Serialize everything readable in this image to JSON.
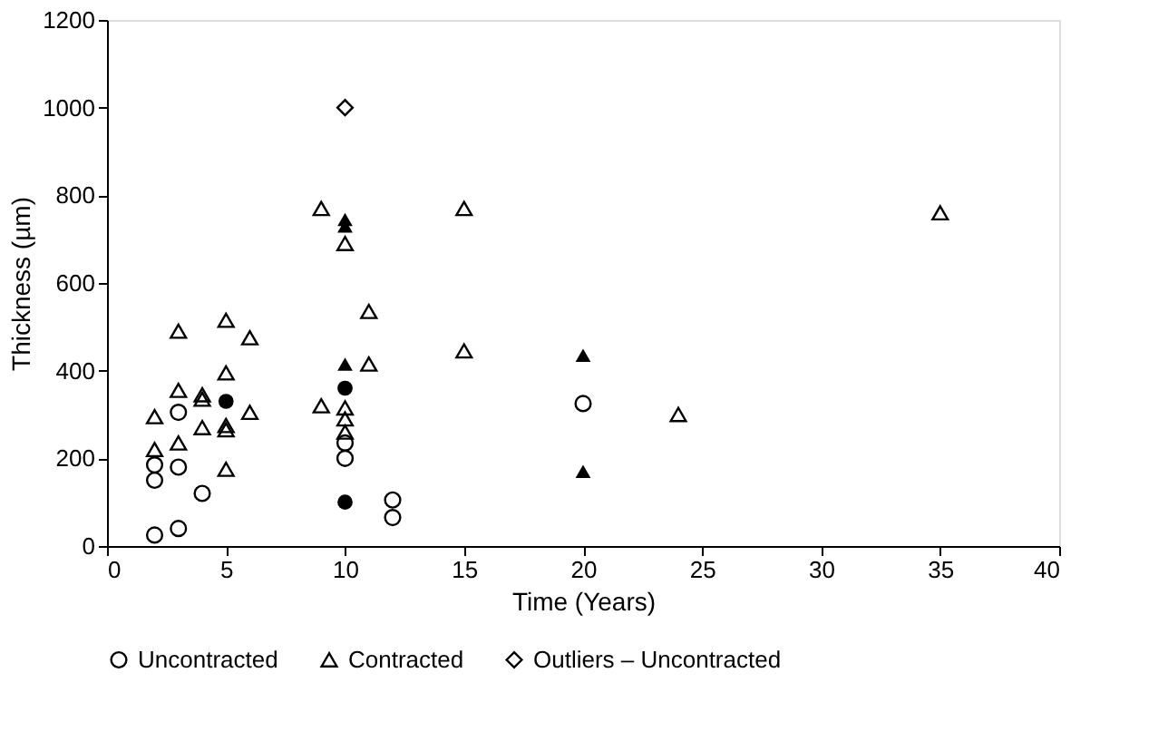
{
  "chart_data": {
    "type": "scatter",
    "xlabel": "Time (Years)",
    "ylabel": "Thickness (µm)",
    "xlim": [
      0,
      40
    ],
    "xticks": [
      0,
      5,
      10,
      15,
      20,
      25,
      30,
      35,
      40
    ],
    "ylim": [
      0,
      1200
    ],
    "yticks": [
      0,
      200,
      400,
      600,
      800,
      1000,
      1200
    ],
    "grid": false,
    "legend": "bottom",
    "series": [
      {
        "name": "Uncontracted",
        "color": "#000000",
        "marker": "circle",
        "x": [
          2,
          2,
          2,
          3,
          3,
          3,
          4,
          10,
          10,
          12,
          12,
          20
        ],
        "values": [
          25,
          150,
          185,
          40,
          180,
          305,
          120,
          200,
          235,
          105,
          65,
          325
        ]
      },
      {
        "name": "Contracted",
        "color": "#000000",
        "marker": "triangle",
        "x": [
          2,
          2,
          3,
          3,
          3,
          4,
          4,
          4,
          5,
          5,
          5,
          5,
          5,
          6,
          6,
          9,
          9,
          10,
          10,
          10,
          10,
          11,
          11,
          15,
          15,
          24,
          35
        ],
        "values": [
          220,
          295,
          235,
          355,
          490,
          270,
          335,
          345,
          175,
          265,
          275,
          395,
          515,
          305,
          475,
          320,
          770,
          260,
          290,
          315,
          690,
          415,
          535,
          445,
          770,
          300,
          760
        ]
      },
      {
        "name": "Outliers – Uncontracted",
        "color": "#000000",
        "marker": "diamond",
        "x": [
          10
        ],
        "values": [
          1000
        ]
      },
      {
        "color": "#000000",
        "marker": "circle",
        "x": [
          5,
          10,
          10
        ],
        "values": [
          330,
          360,
          100
        ]
      },
      {
        "color": "#000000",
        "marker": "triangle",
        "x": [
          10,
          10,
          10,
          20,
          20
        ],
        "values": [
          415,
          730,
          745,
          435,
          170
        ]
      }
    ]
  }
}
